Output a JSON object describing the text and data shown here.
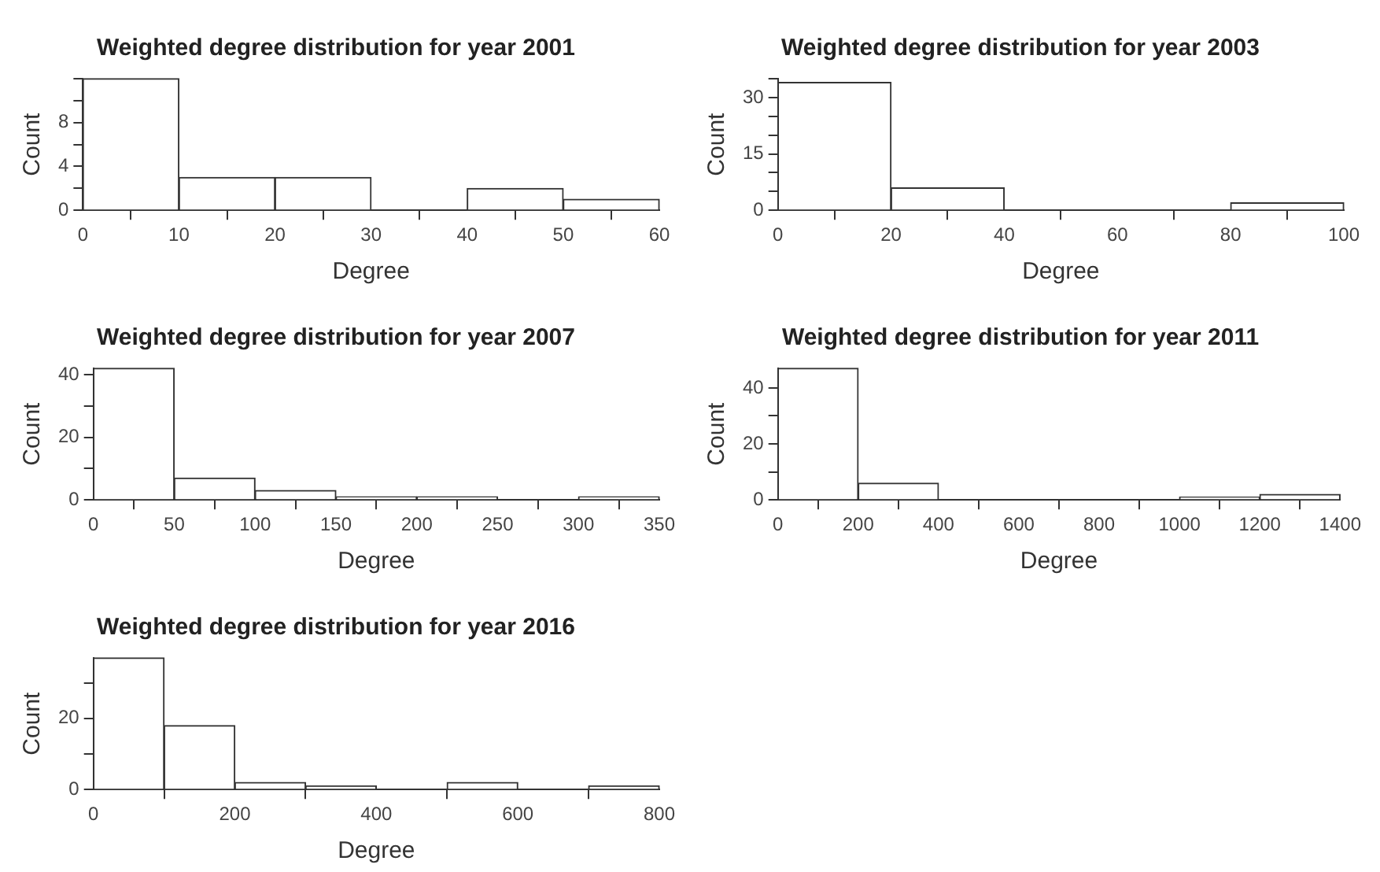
{
  "chart_data": [
    {
      "type": "histogram",
      "title": "Weighted degree distribution for year 2001",
      "xlabel": "Degree",
      "ylabel": "Count",
      "bins": [
        0,
        10,
        20,
        30,
        40,
        50,
        60
      ],
      "values": [
        12,
        3,
        3,
        0,
        2,
        1
      ],
      "color": "#ffffff",
      "xlim": [
        0,
        60
      ],
      "xticks": [
        0,
        10,
        20,
        30,
        40,
        50,
        60
      ],
      "ylim": [
        0,
        12
      ],
      "yticks": [
        0,
        {
          "value": 2,
          "label": null
        },
        4,
        {
          "value": 6,
          "label": null
        },
        8,
        {
          "value": 10,
          "label": null
        },
        {
          "value": 12,
          "label": null
        }
      ],
      "grid": false,
      "legend": false
    },
    {
      "type": "histogram",
      "title": "Weighted degree distribution for year 2003",
      "xlabel": "Degree",
      "ylabel": "Count",
      "bins": [
        0,
        20,
        40,
        60,
        80,
        100
      ],
      "values": [
        34,
        6,
        0,
        0,
        2
      ],
      "color": "#ffffff",
      "xlim": [
        0,
        100
      ],
      "xticks": [
        0,
        20,
        40,
        60,
        80,
        100
      ],
      "ylim": [
        0,
        35
      ],
      "yticks": [
        0,
        {
          "value": 5,
          "label": null
        },
        {
          "value": 10,
          "label": null
        },
        15,
        {
          "value": 20,
          "label": null
        },
        {
          "value": 25,
          "label": null
        },
        30,
        {
          "value": 35,
          "label": null
        }
      ],
      "grid": false,
      "legend": false
    },
    {
      "type": "histogram",
      "title": "Weighted degree distribution for year 2007",
      "xlabel": "Degree",
      "ylabel": "Count",
      "bins": [
        0,
        50,
        100,
        150,
        200,
        250,
        300,
        350
      ],
      "values": [
        42,
        7,
        3,
        1,
        1,
        0,
        1
      ],
      "color": "#ffffff",
      "xlim": [
        0,
        350
      ],
      "xticks": [
        0,
        50,
        100,
        150,
        200,
        250,
        300,
        350
      ],
      "ylim": [
        0,
        42
      ],
      "yticks": [
        0,
        {
          "value": 10,
          "label": null
        },
        20,
        {
          "value": 30,
          "label": null
        },
        40
      ],
      "grid": false,
      "legend": false
    },
    {
      "type": "histogram",
      "title": "Weighted degree distribution for year 2011",
      "xlabel": "Degree",
      "ylabel": "Count",
      "bins": [
        0,
        200,
        400,
        600,
        800,
        1000,
        1200,
        1400
      ],
      "values": [
        47,
        6,
        0,
        0,
        0,
        1,
        2
      ],
      "color": "#ffffff",
      "xlim": [
        0,
        1400
      ],
      "xticks": [
        0,
        200,
        400,
        600,
        800,
        1000,
        1200,
        1400
      ],
      "ylim": [
        0,
        47
      ],
      "yticks": [
        0,
        {
          "value": 10,
          "label": null
        },
        20,
        {
          "value": 30,
          "label": null
        },
        40
      ],
      "grid": false,
      "legend": false
    },
    {
      "type": "histogram",
      "title": "Weighted degree distribution for year 2016",
      "xlabel": "Degree",
      "ylabel": "Count",
      "bins": [
        0,
        100,
        200,
        300,
        400,
        500,
        600,
        700,
        800
      ],
      "values": [
        37,
        18,
        2,
        1,
        0,
        2,
        0,
        1
      ],
      "color": "#ffffff",
      "xlim": [
        0,
        800
      ],
      "xticks": [
        0,
        {
          "value": 200,
          "label": "200"
        },
        400,
        600,
        800
      ],
      "ylim": [
        0,
        37
      ],
      "yticks": [
        0,
        {
          "value": 10,
          "label": null
        },
        20,
        {
          "value": 30,
          "label": null
        }
      ],
      "grid": false,
      "legend": false
    }
  ]
}
